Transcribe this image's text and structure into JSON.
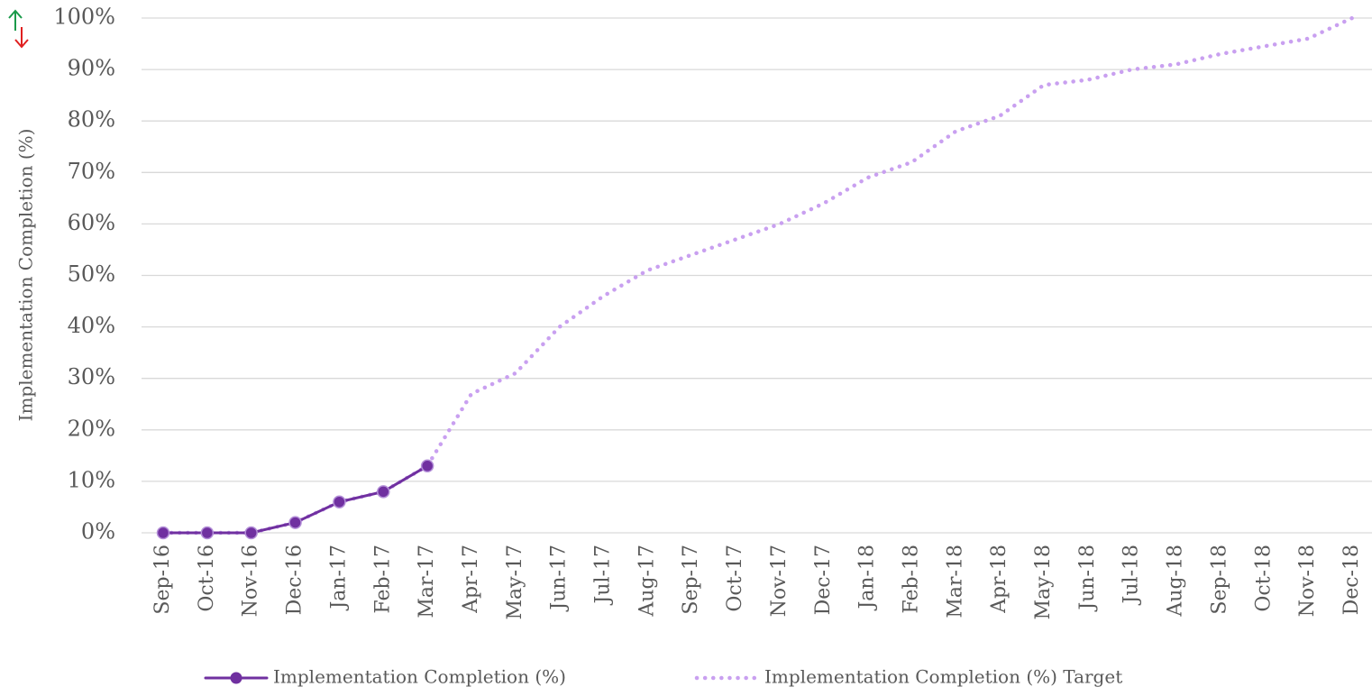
{
  "chart_data": {
    "type": "line",
    "ylabel": "Implementation Completion (%)",
    "categories": [
      "Sep-16",
      "Oct-16",
      "Nov-16",
      "Dec-16",
      "Jan-17",
      "Feb-17",
      "Mar-17",
      "Apr-17",
      "May-17",
      "Jun-17",
      "Jul-17",
      "Aug-17",
      "Sep-17",
      "Oct-17",
      "Nov-17",
      "Dec-17",
      "Jan-18",
      "Feb-18",
      "Mar-18",
      "Apr-18",
      "May-18",
      "Jun-18",
      "Jul-18",
      "Aug-18",
      "Sep-18",
      "Oct-18",
      "Nov-18",
      "Dec-18"
    ],
    "series": [
      {
        "name": "Implementation Completion (%)",
        "color": "#7030a0",
        "style": "solid",
        "markers": true,
        "values": [
          0,
          0,
          0,
          2,
          6,
          8,
          13,
          null,
          null,
          null,
          null,
          null,
          null,
          null,
          null,
          null,
          null,
          null,
          null,
          null,
          null,
          null,
          null,
          null,
          null,
          null,
          null,
          null
        ]
      },
      {
        "name": "Implementation Completion (%) Target",
        "color": "#c9a0f0",
        "style": "dotted",
        "markers": false,
        "values": [
          0,
          0,
          0,
          2,
          6,
          8,
          13,
          27,
          31,
          40,
          46,
          51,
          54,
          57,
          60,
          64,
          69,
          72,
          78,
          81,
          87,
          88,
          90,
          91,
          93,
          94.5,
          96,
          100
        ]
      }
    ],
    "ylim": [
      0,
      100
    ],
    "yticks": [
      {
        "value": 0,
        "label": "0%"
      },
      {
        "value": 10,
        "label": "10%"
      },
      {
        "value": 20,
        "label": "20%"
      },
      {
        "value": 30,
        "label": "30%"
      },
      {
        "value": 40,
        "label": "40%"
      },
      {
        "value": 50,
        "label": "50%"
      },
      {
        "value": 60,
        "label": "60%"
      },
      {
        "value": 70,
        "label": "70%"
      },
      {
        "value": 80,
        "label": "80%"
      },
      {
        "value": 90,
        "label": "90%"
      },
      {
        "value": 100,
        "label": "100%"
      }
    ],
    "grid": true
  }
}
